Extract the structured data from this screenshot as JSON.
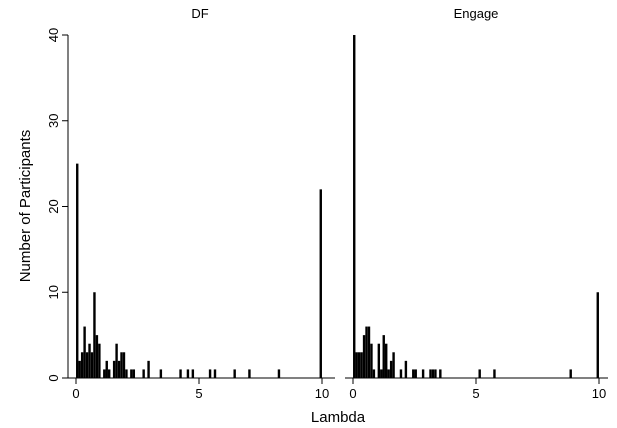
{
  "chart_data": [
    {
      "type": "bar",
      "title": "DF",
      "xlabel": "Lambda",
      "ylabel": "Number of Participants",
      "xlim": [
        0,
        10
      ],
      "ylim": [
        0,
        40
      ],
      "xticks": [
        "0",
        "5",
        "10"
      ],
      "yticks": [
        "0",
        "10",
        "20",
        "30",
        "40"
      ],
      "grid": false,
      "bars": [
        {
          "x": 0.05,
          "y": 25
        },
        {
          "x": 0.15,
          "y": 2
        },
        {
          "x": 0.25,
          "y": 3
        },
        {
          "x": 0.35,
          "y": 6
        },
        {
          "x": 0.45,
          "y": 3
        },
        {
          "x": 0.55,
          "y": 4
        },
        {
          "x": 0.65,
          "y": 3
        },
        {
          "x": 0.75,
          "y": 10
        },
        {
          "x": 0.85,
          "y": 5
        },
        {
          "x": 0.95,
          "y": 4
        },
        {
          "x": 1.15,
          "y": 1
        },
        {
          "x": 1.25,
          "y": 2
        },
        {
          "x": 1.35,
          "y": 1
        },
        {
          "x": 1.55,
          "y": 2
        },
        {
          "x": 1.65,
          "y": 4
        },
        {
          "x": 1.75,
          "y": 2
        },
        {
          "x": 1.85,
          "y": 3
        },
        {
          "x": 1.95,
          "y": 3
        },
        {
          "x": 2.05,
          "y": 1
        },
        {
          "x": 2.25,
          "y": 1
        },
        {
          "x": 2.35,
          "y": 1
        },
        {
          "x": 2.75,
          "y": 1
        },
        {
          "x": 2.95,
          "y": 2
        },
        {
          "x": 3.45,
          "y": 1
        },
        {
          "x": 4.25,
          "y": 1
        },
        {
          "x": 4.55,
          "y": 1
        },
        {
          "x": 4.75,
          "y": 1
        },
        {
          "x": 5.45,
          "y": 1
        },
        {
          "x": 5.65,
          "y": 1
        },
        {
          "x": 6.45,
          "y": 1
        },
        {
          "x": 7.05,
          "y": 1
        },
        {
          "x": 8.25,
          "y": 1
        },
        {
          "x": 9.95,
          "y": 22
        }
      ]
    },
    {
      "type": "bar",
      "title": "Engage",
      "xlabel": "Lambda",
      "ylabel": "Number of Participants",
      "xlim": [
        0,
        10
      ],
      "ylim": [
        0,
        40
      ],
      "xticks": [
        "0",
        "5",
        "10"
      ],
      "yticks": [
        "0",
        "10",
        "20",
        "30",
        "40"
      ],
      "grid": false,
      "bars": [
        {
          "x": 0.05,
          "y": 40
        },
        {
          "x": 0.15,
          "y": 3
        },
        {
          "x": 0.25,
          "y": 3
        },
        {
          "x": 0.35,
          "y": 3
        },
        {
          "x": 0.45,
          "y": 5
        },
        {
          "x": 0.55,
          "y": 6
        },
        {
          "x": 0.65,
          "y": 6
        },
        {
          "x": 0.75,
          "y": 4
        },
        {
          "x": 0.85,
          "y": 1
        },
        {
          "x": 1.05,
          "y": 4
        },
        {
          "x": 1.15,
          "y": 1
        },
        {
          "x": 1.25,
          "y": 5
        },
        {
          "x": 1.35,
          "y": 4
        },
        {
          "x": 1.45,
          "y": 1
        },
        {
          "x": 1.55,
          "y": 2
        },
        {
          "x": 1.65,
          "y": 3
        },
        {
          "x": 1.95,
          "y": 1
        },
        {
          "x": 2.15,
          "y": 2
        },
        {
          "x": 2.45,
          "y": 1
        },
        {
          "x": 2.55,
          "y": 1
        },
        {
          "x": 2.85,
          "y": 1
        },
        {
          "x": 3.15,
          "y": 1
        },
        {
          "x": 3.25,
          "y": 1
        },
        {
          "x": 3.35,
          "y": 1
        },
        {
          "x": 3.55,
          "y": 1
        },
        {
          "x": 5.15,
          "y": 1
        },
        {
          "x": 5.75,
          "y": 1
        },
        {
          "x": 8.85,
          "y": 1
        },
        {
          "x": 9.95,
          "y": 10
        }
      ]
    }
  ]
}
